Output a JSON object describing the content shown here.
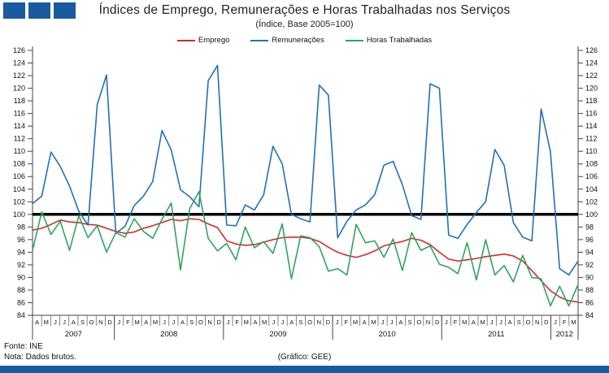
{
  "header": {
    "title": "Índices de Emprego, Remunerações e Horas Trabalhadas nos Serviços",
    "subtitle": "(Índice, Base 2005=100)"
  },
  "branding": {
    "accent_color": "#1a5a9e",
    "square_count": 3
  },
  "legend": [
    {
      "label": "Emprego",
      "color": "#d22b2b"
    },
    {
      "label": "Remunerações",
      "color": "#2271b5"
    },
    {
      "label": "Horas Trabalhadas",
      "color": "#2ea45f"
    }
  ],
  "footer": {
    "fonte": "Fonte: INE",
    "nota": "Nota: Dados brutos.",
    "grafico": "(Gráfico: GEE)"
  },
  "chart_data": {
    "type": "line",
    "title": "Índices de Emprego, Remunerações e Horas Trabalhadas nos Serviços",
    "subtitle": "(Índice, Base 2005=100)",
    "ylim": [
      84,
      126
    ],
    "ytick_step": 2,
    "grid": false,
    "legend_position": "top",
    "reference_line": 100,
    "reference_color": "#000000",
    "axis_color": "#444444",
    "x_month_labels": [
      "A",
      "M",
      "J",
      "J",
      "A",
      "S",
      "O",
      "N",
      "D",
      "J",
      "F",
      "M",
      "A",
      "M",
      "J",
      "J",
      "A",
      "S",
      "O",
      "N",
      "D",
      "J",
      "F",
      "M",
      "A",
      "M",
      "J",
      "J",
      "A",
      "S",
      "O",
      "N",
      "D",
      "J",
      "F",
      "M",
      "A",
      "M",
      "J",
      "J",
      "A",
      "S",
      "O",
      "N",
      "D",
      "J",
      "F",
      "M",
      "A",
      "M",
      "J",
      "J",
      "A",
      "S",
      "O",
      "N",
      "D",
      "J",
      "F",
      "M"
    ],
    "years": [
      {
        "label": "2007",
        "span": 9
      },
      {
        "label": "2008",
        "span": 12
      },
      {
        "label": "2009",
        "span": 12
      },
      {
        "label": "2010",
        "span": 12
      },
      {
        "label": "2011",
        "span": 12
      },
      {
        "label": "2012",
        "span": 3
      }
    ],
    "series": [
      {
        "name": "Emprego",
        "color": "#d22b2b",
        "width": 1.6,
        "values": [
          97.5,
          97.8,
          98.4,
          99.1,
          98.8,
          98.7,
          98.4,
          98.3,
          97.8,
          97.3,
          97.0,
          97.2,
          97.8,
          98.2,
          98.7,
          99.2,
          99.0,
          99.3,
          99.2,
          98.5,
          97.9,
          95.8,
          95.3,
          95.1,
          95.2,
          95.6,
          96.0,
          96.3,
          96.4,
          96.4,
          96.2,
          95.7,
          94.8,
          94.0,
          93.5,
          93.2,
          93.6,
          94.2,
          95.0,
          95.4,
          95.7,
          96.2,
          95.9,
          95.2,
          94.0,
          92.9,
          92.6,
          92.8,
          93.0,
          93.3,
          93.5,
          93.7,
          93.4,
          92.6,
          91.1,
          89.5,
          87.9,
          86.9,
          86.3,
          86.1
        ]
      },
      {
        "name": "Remunerações",
        "color": "#2271b5",
        "width": 1.6,
        "values": [
          101.7,
          102.9,
          109.9,
          107.6,
          104.5,
          100.5,
          98.3,
          117.4,
          122.1,
          97.0,
          98.1,
          101.4,
          102.9,
          105.2,
          113.3,
          110.2,
          103.9,
          102.8,
          101.2,
          121.2,
          123.6,
          98.3,
          98.2,
          101.5,
          100.7,
          103.1,
          110.8,
          108.0,
          100.0,
          99.3,
          98.8,
          120.5,
          118.9,
          96.3,
          98.9,
          100.7,
          101.5,
          103.1,
          107.8,
          108.4,
          104.7,
          99.8,
          99.2,
          120.7,
          120.0,
          96.7,
          96.2,
          98.4,
          100.3,
          102.0,
          110.3,
          107.8,
          98.7,
          96.4,
          95.8,
          116.7,
          110.0,
          91.4,
          90.4,
          92.6
        ]
      },
      {
        "name": "Horas Trabalhadas",
        "color": "#2ea45f",
        "width": 1.6,
        "values": [
          94.3,
          100.4,
          96.8,
          98.9,
          94.3,
          99.8,
          96.3,
          98.2,
          94.0,
          97.1,
          96.4,
          99.3,
          97.3,
          96.2,
          99.2,
          101.8,
          91.2,
          100.9,
          103.6,
          96.2,
          94.2,
          95.4,
          92.8,
          98.0,
          94.7,
          95.7,
          93.8,
          98.5,
          89.8,
          96.6,
          96.3,
          94.9,
          91.0,
          91.4,
          90.4,
          98.4,
          95.5,
          95.8,
          93.2,
          96.1,
          91.1,
          97.1,
          94.3,
          95.0,
          92.1,
          91.6,
          90.6,
          95.5,
          89.6,
          96.0,
          90.4,
          91.9,
          89.3,
          93.5,
          90.0,
          89.8,
          85.5,
          88.6,
          85.5,
          88.9
        ]
      }
    ]
  }
}
